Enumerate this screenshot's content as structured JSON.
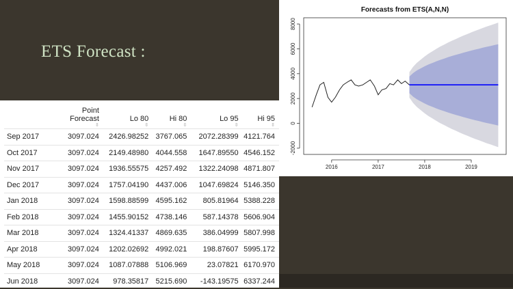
{
  "slide": {
    "title": "ETS Forecast :"
  },
  "table": {
    "columns": [
      "",
      "Point Forecast",
      "Lo 80",
      "Hi 80",
      "Lo 95",
      "Hi 95"
    ],
    "rows": [
      [
        "Sep 2017",
        "3097.024",
        "2426.98252",
        "3767.065",
        "2072.28399",
        "4121.764"
      ],
      [
        "Oct 2017",
        "3097.024",
        "2149.48980",
        "4044.558",
        "1647.89550",
        "4546.152"
      ],
      [
        "Nov 2017",
        "3097.024",
        "1936.55575",
        "4257.492",
        "1322.24098",
        "4871.807"
      ],
      [
        "Dec 2017",
        "3097.024",
        "1757.04190",
        "4437.006",
        "1047.69824",
        "5146.350"
      ],
      [
        "Jan 2018",
        "3097.024",
        "1598.88599",
        "4595.162",
        "805.81964",
        "5388.228"
      ],
      [
        "Feb 2018",
        "3097.024",
        "1455.90152",
        "4738.146",
        "587.14378",
        "5606.904"
      ],
      [
        "Mar 2018",
        "3097.024",
        "1324.41337",
        "4869.635",
        "386.04999",
        "5807.998"
      ],
      [
        "Apr 2018",
        "3097.024",
        "1202.02692",
        "4992.021",
        "198.87607",
        "5995.172"
      ],
      [
        "May 2018",
        "3097.024",
        "1087.07888",
        "5106.969",
        "23.07821",
        "6170.970"
      ],
      [
        "Jun 2018",
        "3097.024",
        "978.35817",
        "5215.690",
        "-143.19575",
        "6337.244"
      ]
    ]
  },
  "chart_data": {
    "type": "line",
    "title": "Forecasts from ETS(A,N,N)",
    "xlabel": "",
    "ylabel": "",
    "xlim": [
      2015.4,
      2019.75
    ],
    "ylim": [
      -2500,
      8500
    ],
    "x_ticks": [
      2016,
      2017,
      2018,
      2019
    ],
    "y_ticks": [
      -2000,
      0,
      2000,
      4000,
      6000,
      8000
    ],
    "history": {
      "x": [
        2015.58,
        2015.67,
        2015.75,
        2015.83,
        2015.92,
        2016.0,
        2016.08,
        2016.17,
        2016.25,
        2016.33,
        2016.42,
        2016.5,
        2016.58,
        2016.67,
        2016.75,
        2016.83,
        2016.92,
        2017.0,
        2017.08,
        2017.17,
        2017.25,
        2017.33,
        2017.42,
        2017.5,
        2017.58,
        2017.67
      ],
      "y": [
        1300,
        2300,
        3100,
        3300,
        2100,
        1700,
        2100,
        2700,
        3100,
        3300,
        3500,
        3100,
        3000,
        3100,
        3300,
        3500,
        3000,
        2300,
        2700,
        2800,
        3200,
        3100,
        3500,
        3200,
        3400,
        3100
      ]
    },
    "forecast": {
      "x": [
        2017.67,
        2017.75,
        2017.83,
        2017.92,
        2018.0,
        2018.08,
        2018.17,
        2018.25,
        2018.33,
        2018.42,
        2018.5,
        2018.58,
        2018.67,
        2018.75,
        2018.83,
        2018.92,
        2019.0,
        2019.08,
        2019.17,
        2019.25,
        2019.33,
        2019.42,
        2019.5,
        2019.58
      ],
      "mean": 3097.024,
      "lo80": [
        2426.98,
        2149.49,
        1936.56,
        1757.04,
        1598.89,
        1455.9,
        1324.41,
        1202.03,
        1087.08,
        978.36,
        875,
        776,
        681,
        590,
        502,
        417,
        335,
        255,
        178,
        103,
        30,
        -41,
        -110,
        -178
      ],
      "hi80": [
        3767.07,
        4044.56,
        4257.49,
        4437.01,
        4595.16,
        4738.15,
        4869.64,
        4992.02,
        5106.97,
        5215.69,
        5319,
        5418,
        5513,
        5604,
        5692,
        5777,
        5859,
        5939,
        6016,
        6091,
        6164,
        6235,
        6304,
        6372
      ],
      "lo95": [
        2072.28,
        1647.9,
        1322.24,
        1047.7,
        805.82,
        587.14,
        386.05,
        198.88,
        23.08,
        -143.2,
        -302,
        -453,
        -598,
        -738,
        -872,
        -1002,
        -1128,
        -1250,
        -1369,
        -1484,
        -1596,
        -1705,
        -1811,
        -1915
      ],
      "hi95": [
        4121.76,
        4546.15,
        4871.81,
        5146.35,
        5388.23,
        5606.9,
        5808.0,
        5995.17,
        6170.97,
        6337.24,
        6496,
        6647,
        6792,
        6932,
        7066,
        7196,
        7322,
        7444,
        7563,
        7678,
        7790,
        7899,
        8005,
        8109
      ]
    },
    "colors": {
      "history": "#222222",
      "mean": "#0000ff",
      "band80": "#a8aed8",
      "band95": "#d8d8e0"
    }
  }
}
